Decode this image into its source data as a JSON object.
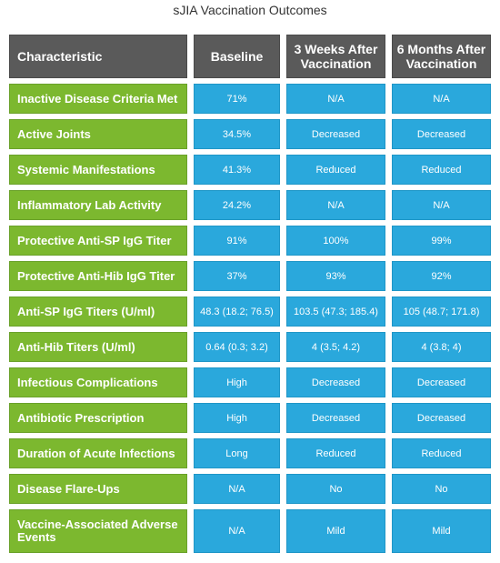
{
  "title": "sJIA Vaccination Outcomes",
  "headers": [
    "Characteristic",
    "Baseline",
    "3 Weeks After Vaccination",
    "6 Months After Vaccination"
  ],
  "rows": [
    {
      "label": "Inactive Disease Criteria Met",
      "baseline": "71%",
      "w3": "N/A",
      "m6": "N/A"
    },
    {
      "label": "Active Joints",
      "baseline": "34.5%",
      "w3": "Decreased",
      "m6": "Decreased"
    },
    {
      "label": "Systemic Manifestations",
      "baseline": "41.3%",
      "w3": "Reduced",
      "m6": "Reduced"
    },
    {
      "label": "Inflammatory Lab Activity",
      "baseline": "24.2%",
      "w3": "N/A",
      "m6": "N/A"
    },
    {
      "label": "Protective Anti-SP IgG Titer",
      "baseline": "91%",
      "w3": "100%",
      "m6": "99%"
    },
    {
      "label": "Protective Anti-Hib IgG Titer",
      "baseline": "37%",
      "w3": "93%",
      "m6": "92%"
    },
    {
      "label": "Anti-SP IgG Titers (U/ml)",
      "baseline": "48.3 (18.2; 76.5)",
      "w3": "103.5 (47.3; 185.4)",
      "m6": "105 (48.7; 171.8)"
    },
    {
      "label": "Anti-Hib Titers (U/ml)",
      "baseline": "0.64 (0.3; 3.2)",
      "w3": "4 (3.5; 4.2)",
      "m6": "4 (3.8; 4)"
    },
    {
      "label": "Infectious Complications",
      "baseline": "High",
      "w3": "Decreased",
      "m6": "Decreased"
    },
    {
      "label": "Antibiotic Prescription",
      "baseline": "High",
      "w3": "Decreased",
      "m6": "Decreased"
    },
    {
      "label": "Duration of Acute Infections",
      "baseline": "Long",
      "w3": "Reduced",
      "m6": "Reduced"
    },
    {
      "label": "Disease Flare-Ups",
      "baseline": "N/A",
      "w3": "No",
      "m6": "No"
    },
    {
      "label": "Vaccine-Associated Adverse Events",
      "baseline": "N/A",
      "w3": "Mild",
      "m6": "Mild"
    }
  ],
  "colors": {
    "header": "#5a5a5a",
    "label": "#7cb82f",
    "value": "#2aa8dc"
  }
}
